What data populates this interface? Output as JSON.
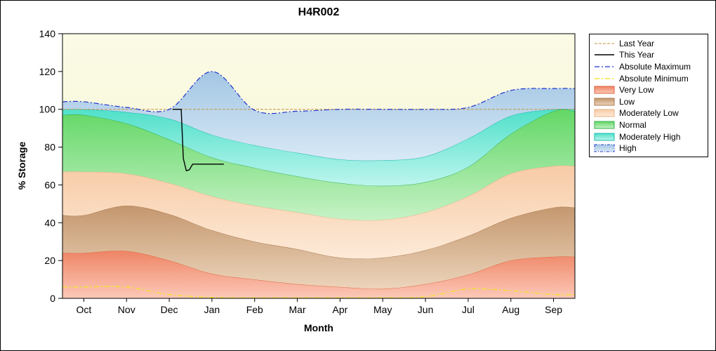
{
  "chart_data": {
    "type": "area",
    "title": "H4R002",
    "xlabel": "Month",
    "ylabel": "% Storage",
    "ylim": [
      0,
      140
    ],
    "ytick_step": 20,
    "legend_position": "right",
    "grid": false,
    "plot_bg_top": "#fbfbe6",
    "plot_bg_bottom": "#f4f4cf",
    "categories": [
      "Oct",
      "Nov",
      "Dec",
      "Jan",
      "Feb",
      "Mar",
      "Apr",
      "May",
      "Jun",
      "Jul",
      "Aug",
      "Sep"
    ],
    "bands": [
      {
        "name": "Very Low",
        "upper": [
          24,
          25,
          20,
          13,
          10,
          7.5,
          6,
          5,
          7.5,
          12.5,
          20,
          22
        ],
        "color_top": "#ee8465",
        "color_bottom": "#fcc9b8",
        "edge": "#e2643f"
      },
      {
        "name": "Low",
        "upper": [
          44,
          49,
          44.5,
          36,
          30,
          26,
          21.5,
          21.5,
          25.5,
          33,
          42.5,
          48
        ],
        "color_top": "#c4976e",
        "color_bottom": "#ecd4bb",
        "edge": "#a97a4e"
      },
      {
        "name": "Moderately Low",
        "upper": [
          67,
          66,
          61,
          54,
          49,
          45.5,
          42,
          41.5,
          45.5,
          54,
          66,
          70
        ],
        "color_top": "#f7cba6",
        "color_bottom": "#fdead8",
        "edge": "#e9b183"
      },
      {
        "name": "Normal",
        "upper": [
          97,
          92.5,
          84,
          74.5,
          69,
          64.5,
          61,
          59.5,
          61.5,
          69.5,
          87,
          99
        ],
        "color_top": "#63d766",
        "color_bottom": "#c6f2c6",
        "edge": "#33b04a"
      },
      {
        "name": "Moderately High",
        "upper": [
          100,
          98.5,
          95,
          86.5,
          81,
          77,
          73.5,
          73,
          75,
          84.5,
          96.5,
          100
        ],
        "color_top": "#4fe0c9",
        "color_bottom": "#bdf5ee",
        "edge": "#19b9ae"
      },
      {
        "name": "High",
        "upper": [
          104,
          101,
          100,
          120,
          99.5,
          99,
          100,
          100,
          100,
          101,
          110,
          111
        ],
        "color_top": "#a3c6e4",
        "color_bottom": "#d9e9f6",
        "edge": "#2b3fd0",
        "no_edge": true
      }
    ],
    "lines": [
      {
        "name": "Last Year",
        "color": "#c89544",
        "width": 1,
        "dash": "4 2",
        "smooth": false,
        "x": [
          -0.5,
          11.5
        ],
        "y": [
          100,
          100
        ]
      },
      {
        "name": "This Year",
        "color": "#000000",
        "width": 1.4,
        "dash": "",
        "smooth": false,
        "x": [
          2.08,
          2.28,
          2.33,
          2.4,
          2.47,
          2.55,
          3.28
        ],
        "y": [
          100,
          100,
          74,
          67.5,
          68,
          71,
          71
        ]
      },
      {
        "name": "Absolute Maximum",
        "color": "#2233cc",
        "width": 1.2,
        "dash": "7 3 2 3",
        "smooth": true,
        "y": [
          104,
          101,
          100,
          120,
          99.5,
          99,
          100,
          100,
          100,
          101,
          110,
          111
        ]
      },
      {
        "name": "Absolute Minimum",
        "color": "#f2e432",
        "width": 1.4,
        "dash": "7 3 2 3",
        "smooth": true,
        "y": [
          6,
          6,
          2,
          0.5,
          0.3,
          0.3,
          0.3,
          0.3,
          0.8,
          5,
          4,
          2
        ]
      }
    ]
  }
}
